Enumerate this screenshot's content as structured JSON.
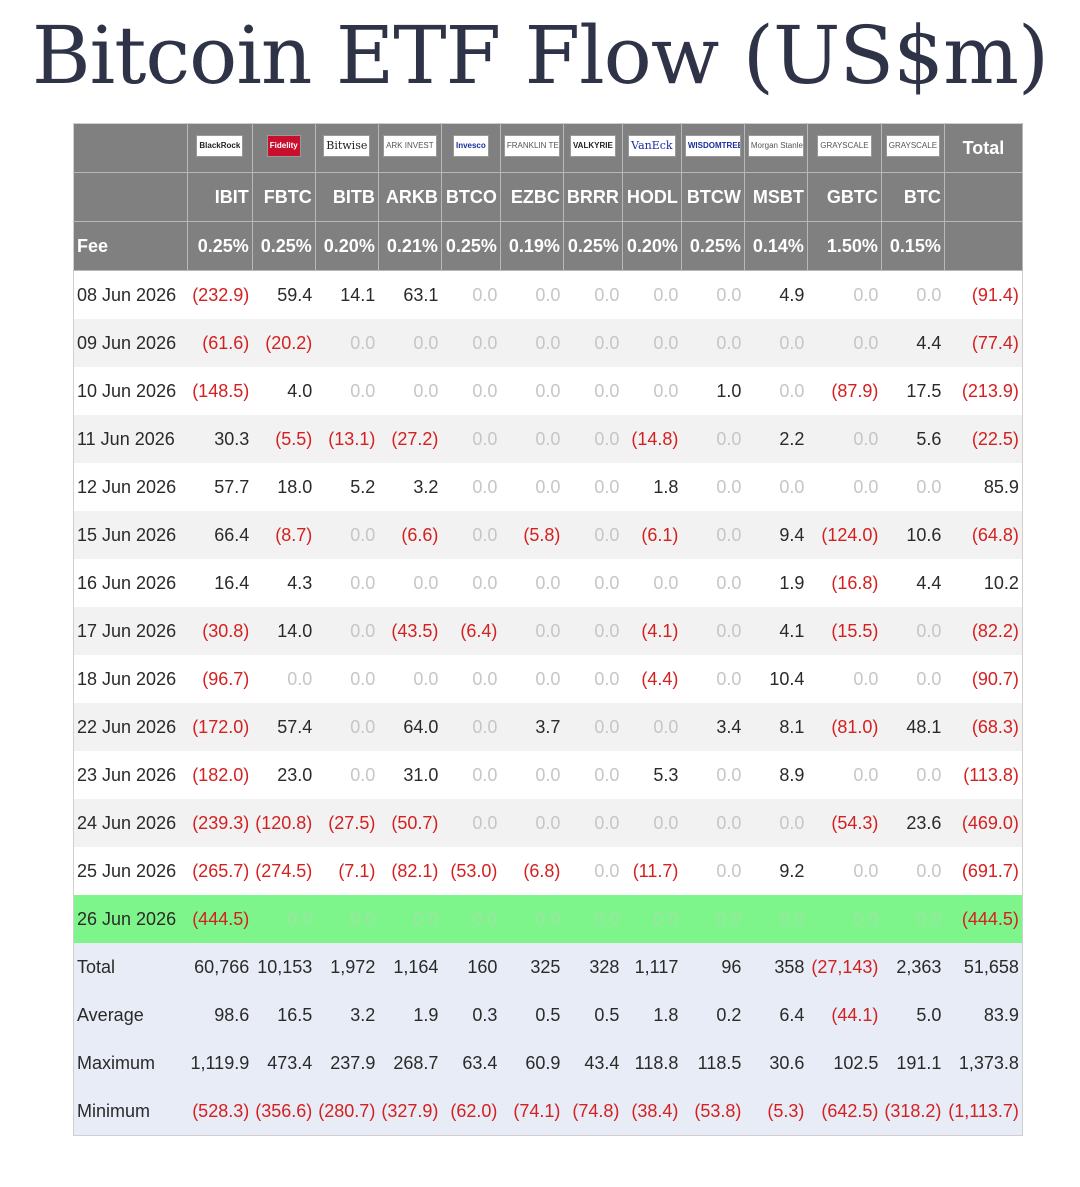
{
  "title": "Bitcoin ETF Flow (US$m)",
  "header": {
    "issuers": [
      "BlackRock",
      "Fidelity",
      "Bitwise",
      "ARK INVEST",
      "Invesco",
      "FRANKLIN TEMPLETON",
      "VALKYRIE",
      "VanEck",
      "WISDOMTREE",
      "Morgan Stanley",
      "GRAYSCALE",
      "GRAYSCALE"
    ],
    "total_label": "Total",
    "tickers": [
      "IBIT",
      "FBTC",
      "BITB",
      "ARKB",
      "BTCO",
      "EZBC",
      "BRRR",
      "HODL",
      "BTCW",
      "MSBT",
      "GBTC",
      "BTC"
    ],
    "fee_label": "Fee",
    "fees": [
      "0.25%",
      "0.25%",
      "0.20%",
      "0.21%",
      "0.25%",
      "0.19%",
      "0.25%",
      "0.20%",
      "0.25%",
      "0.14%",
      "1.50%",
      "0.15%"
    ]
  },
  "rows": [
    {
      "date": "08 Jun 2026",
      "values": [
        "(232.9)",
        "59.4",
        "14.1",
        "63.1",
        "0.0",
        "0.0",
        "0.0",
        "0.0",
        "0.0",
        "4.9",
        "0.0",
        "0.0",
        "(91.4)"
      ]
    },
    {
      "date": "09 Jun 2026",
      "values": [
        "(61.6)",
        "(20.2)",
        "0.0",
        "0.0",
        "0.0",
        "0.0",
        "0.0",
        "0.0",
        "0.0",
        "0.0",
        "0.0",
        "4.4",
        "(77.4)"
      ]
    },
    {
      "date": "10 Jun 2026",
      "values": [
        "(148.5)",
        "4.0",
        "0.0",
        "0.0",
        "0.0",
        "0.0",
        "0.0",
        "0.0",
        "1.0",
        "0.0",
        "(87.9)",
        "17.5",
        "(213.9)"
      ]
    },
    {
      "date": "11 Jun 2026",
      "values": [
        "30.3",
        "(5.5)",
        "(13.1)",
        "(27.2)",
        "0.0",
        "0.0",
        "0.0",
        "(14.8)",
        "0.0",
        "2.2",
        "0.0",
        "5.6",
        "(22.5)"
      ]
    },
    {
      "date": "12 Jun 2026",
      "values": [
        "57.7",
        "18.0",
        "5.2",
        "3.2",
        "0.0",
        "0.0",
        "0.0",
        "1.8",
        "0.0",
        "0.0",
        "0.0",
        "0.0",
        "85.9"
      ]
    },
    {
      "date": "15 Jun 2026",
      "values": [
        "66.4",
        "(8.7)",
        "0.0",
        "(6.6)",
        "0.0",
        "(5.8)",
        "0.0",
        "(6.1)",
        "0.0",
        "9.4",
        "(124.0)",
        "10.6",
        "(64.8)"
      ]
    },
    {
      "date": "16 Jun 2026",
      "values": [
        "16.4",
        "4.3",
        "0.0",
        "0.0",
        "0.0",
        "0.0",
        "0.0",
        "0.0",
        "0.0",
        "1.9",
        "(16.8)",
        "4.4",
        "10.2"
      ]
    },
    {
      "date": "17 Jun 2026",
      "values": [
        "(30.8)",
        "14.0",
        "0.0",
        "(43.5)",
        "(6.4)",
        "0.0",
        "0.0",
        "(4.1)",
        "0.0",
        "4.1",
        "(15.5)",
        "0.0",
        "(82.2)"
      ]
    },
    {
      "date": "18 Jun 2026",
      "values": [
        "(96.7)",
        "0.0",
        "0.0",
        "0.0",
        "0.0",
        "0.0",
        "0.0",
        "(4.4)",
        "0.0",
        "10.4",
        "0.0",
        "0.0",
        "(90.7)"
      ]
    },
    {
      "date": "22 Jun 2026",
      "values": [
        "(172.0)",
        "57.4",
        "0.0",
        "64.0",
        "0.0",
        "3.7",
        "0.0",
        "0.0",
        "3.4",
        "8.1",
        "(81.0)",
        "48.1",
        "(68.3)"
      ]
    },
    {
      "date": "23 Jun 2026",
      "values": [
        "(182.0)",
        "23.0",
        "0.0",
        "31.0",
        "0.0",
        "0.0",
        "0.0",
        "5.3",
        "0.0",
        "8.9",
        "0.0",
        "0.0",
        "(113.8)"
      ]
    },
    {
      "date": "24 Jun 2026",
      "values": [
        "(239.3)",
        "(120.8)",
        "(27.5)",
        "(50.7)",
        "0.0",
        "0.0",
        "0.0",
        "0.0",
        "0.0",
        "0.0",
        "(54.3)",
        "23.6",
        "(469.0)"
      ]
    },
    {
      "date": "25 Jun 2026",
      "values": [
        "(265.7)",
        "(274.5)",
        "(7.1)",
        "(82.1)",
        "(53.0)",
        "(6.8)",
        "0.0",
        "(11.7)",
        "0.0",
        "9.2",
        "0.0",
        "0.0",
        "(691.7)"
      ]
    },
    {
      "date": "26 Jun 2026",
      "values": [
        "(444.5)",
        "0.0",
        "0.0",
        "0.0",
        "0.0",
        "0.0",
        "0.0",
        "0.0",
        "0.0",
        "0.0",
        "0.0",
        "0.0",
        "(444.5)"
      ],
      "highlight": true
    }
  ],
  "summary": [
    {
      "label": "Total",
      "values": [
        "60,766",
        "10,153",
        "1,972",
        "1,164",
        "160",
        "325",
        "328",
        "1,117",
        "96",
        "358",
        "(27,143)",
        "2,363",
        "51,658"
      ]
    },
    {
      "label": "Average",
      "values": [
        "98.6",
        "16.5",
        "3.2",
        "1.9",
        "0.3",
        "0.5",
        "0.5",
        "1.8",
        "0.2",
        "6.4",
        "(44.1)",
        "5.0",
        "83.9"
      ]
    },
    {
      "label": "Maximum",
      "values": [
        "1,119.9",
        "473.4",
        "237.9",
        "268.7",
        "63.4",
        "60.9",
        "43.4",
        "118.8",
        "118.5",
        "30.6",
        "102.5",
        "191.1",
        "1,373.8"
      ]
    },
    {
      "label": "Minimum",
      "values": [
        "(528.3)",
        "(356.6)",
        "(280.7)",
        "(327.9)",
        "(62.0)",
        "(74.1)",
        "(74.8)",
        "(38.4)",
        "(53.8)",
        "(5.3)",
        "(642.5)",
        "(318.2)",
        "(1,113.7)"
      ]
    }
  ],
  "colors": {
    "header_bg": "#808080",
    "negative": "#d42020",
    "zero": "#c6c6c6",
    "highlight": "#7ef58a",
    "summary_bg": "#e7ecf6",
    "title": "#2f3348"
  }
}
